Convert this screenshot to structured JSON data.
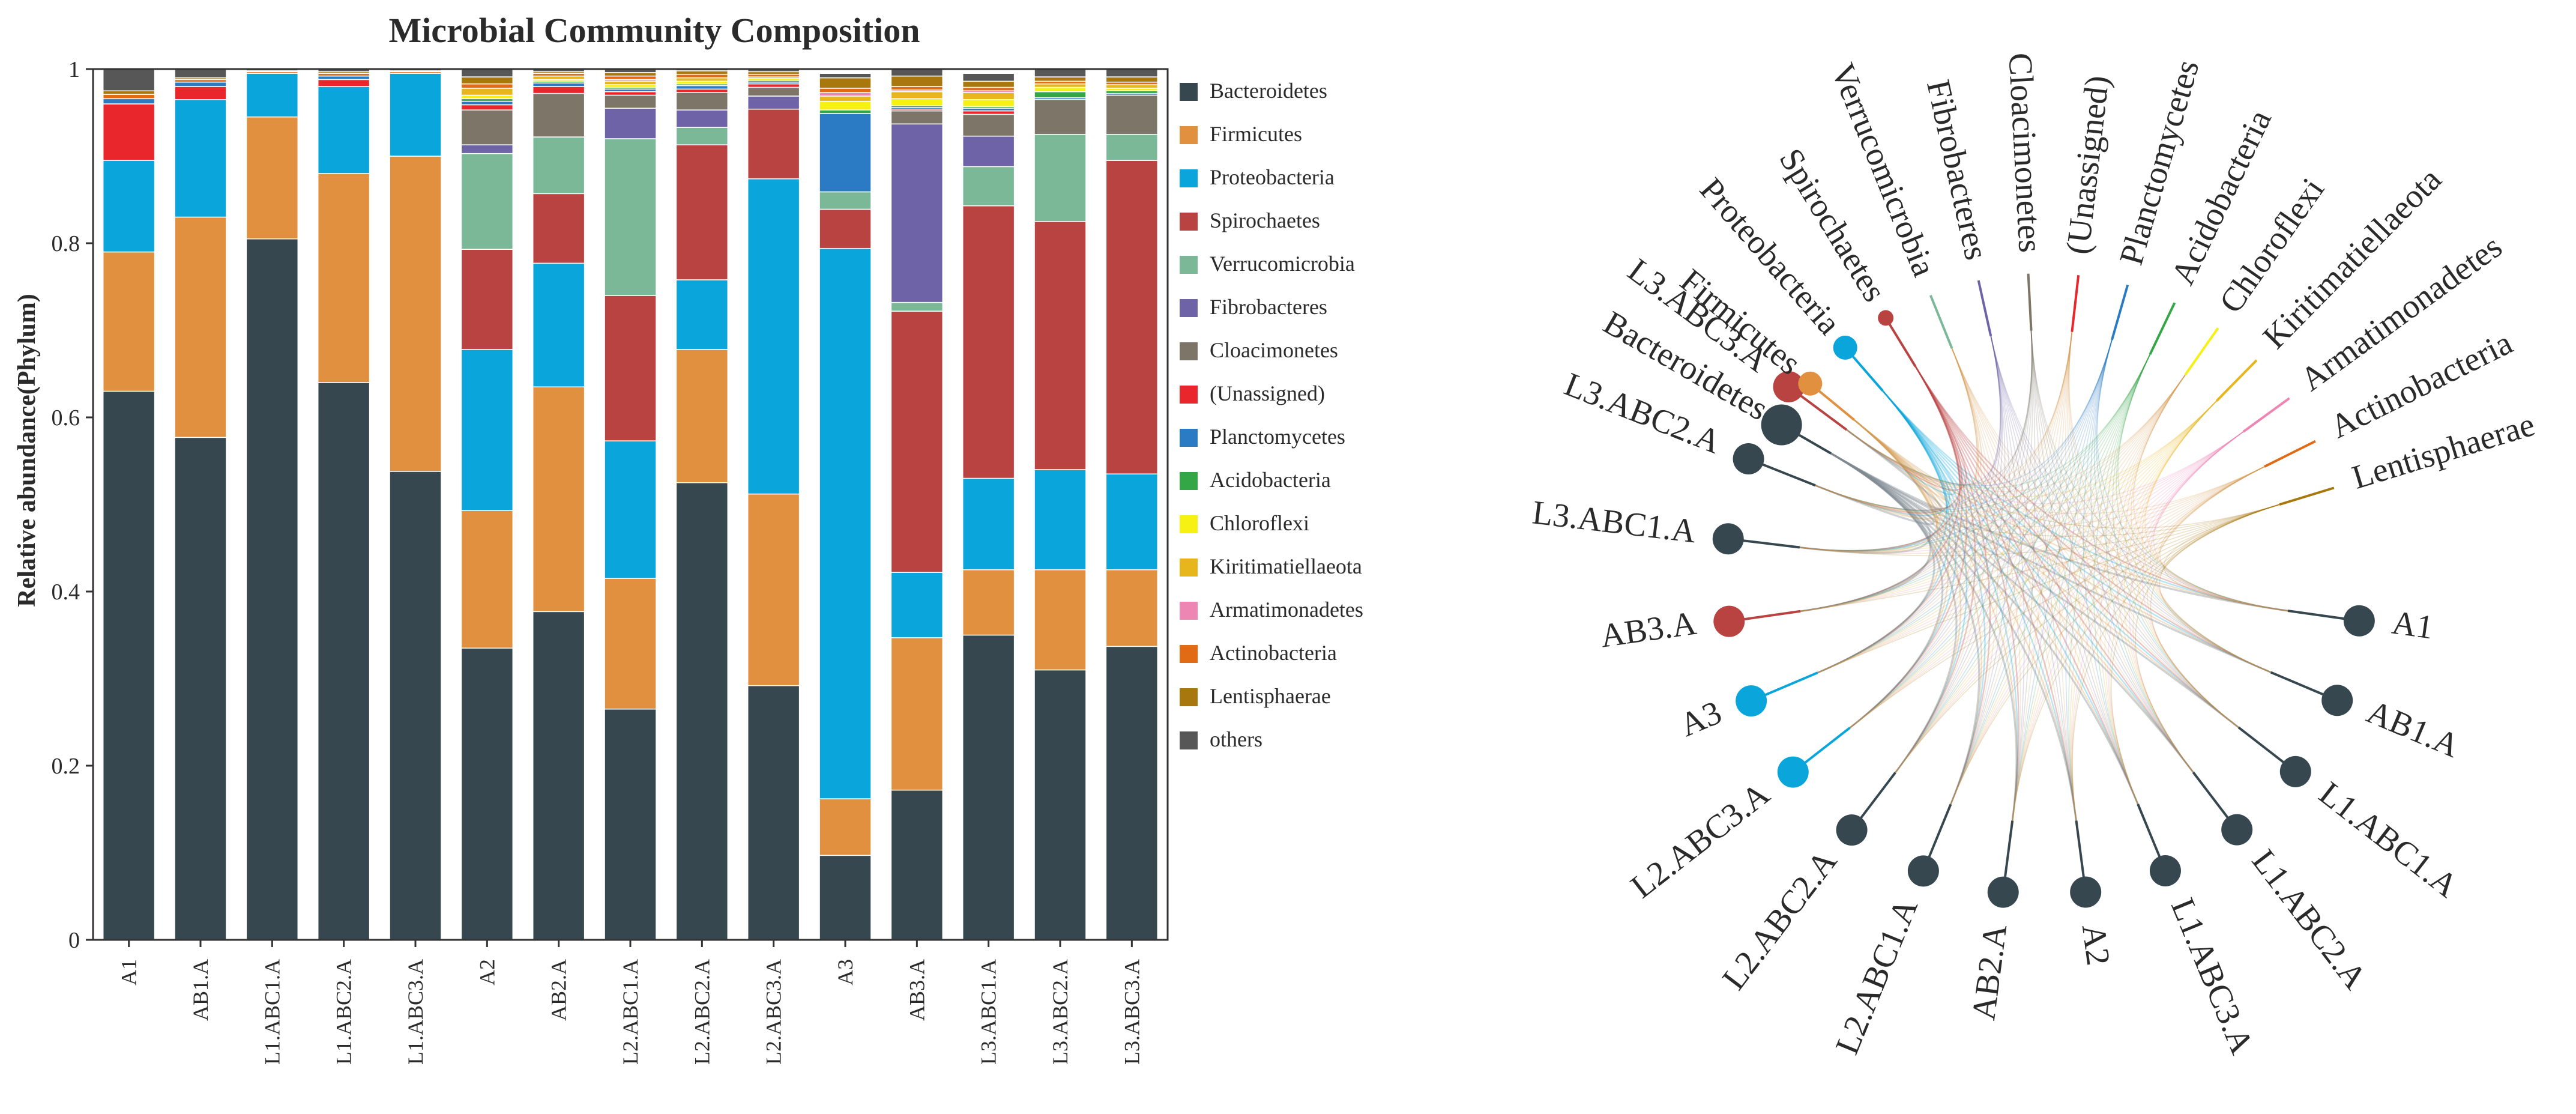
{
  "figure": {
    "panels": [
      "stacked-bar",
      "chord-diagram"
    ]
  },
  "colors": {
    "Bacteroidetes": "#37474f",
    "Firmicutes": "#e0903e",
    "Proteobacteria": "#0aa5db",
    "Spirochaetes": "#b84341",
    "Verrucomicrobia": "#7ab898",
    "Fibrobacteres": "#6e63a6",
    "Cloacimonetes": "#7d7567",
    "(Unassigned)": "#e8262b",
    "Planctomycetes": "#2b7bc4",
    "Acidobacteria": "#33a645",
    "Chloroflexi": "#f6f013",
    "Kiritimatiellaeota": "#e6b61c",
    "Armatimonadetes": "#ee86b4",
    "Actinobacteria": "#e06b14",
    "Lentisphaerae": "#a8780f",
    "others": "#575757"
  },
  "chart_data": [
    {
      "type": "bar",
      "stacked": true,
      "title": "Microbial Community Composition",
      "xlabel": "",
      "ylabel": "Relative abundance(Phylum)",
      "ylim": [
        0,
        1
      ],
      "yticks": [
        "0",
        "0.2",
        "0.4",
        "0.6",
        "0.8",
        "1"
      ],
      "legend_position": "right",
      "categories": [
        "A1",
        "AB1.A",
        "L1.ABC1.A",
        "L1.ABC2.A",
        "L1.ABC3.A",
        "A2",
        "AB2.A",
        "L2.ABC1.A",
        "L2.ABC2.A",
        "L2.ABC3.A",
        "A3",
        "AB3.A",
        "L3.ABC1.A",
        "L3.ABC2.A",
        "L3.ABC3.A"
      ],
      "series": [
        {
          "name": "Bacteroidetes",
          "values": [
            0.63,
            0.577,
            0.805,
            0.64,
            0.538,
            0.335,
            0.377,
            0.265,
            0.525,
            0.292,
            0.097,
            0.172,
            0.35,
            0.31,
            0.337
          ]
        },
        {
          "name": "Firmicutes",
          "values": [
            0.16,
            0.253,
            0.14,
            0.24,
            0.362,
            0.158,
            0.258,
            0.15,
            0.153,
            0.22,
            0.065,
            0.175,
            0.075,
            0.115,
            0.088
          ]
        },
        {
          "name": "Proteobacteria",
          "values": [
            0.105,
            0.135,
            0.05,
            0.1,
            0.095,
            0.185,
            0.142,
            0.158,
            0.08,
            0.362,
            0.632,
            0.075,
            0.105,
            0.115,
            0.11
          ]
        },
        {
          "name": "Spirochaetes",
          "values": [
            0,
            0,
            0,
            0,
            0,
            0.115,
            0.08,
            0.167,
            0.155,
            0.08,
            0.045,
            0.3,
            0.313,
            0.285,
            0.36
          ]
        },
        {
          "name": "Verrucomicrobia",
          "values": [
            0,
            0,
            0,
            0,
            0,
            0.11,
            0.065,
            0.18,
            0.02,
            0,
            0.02,
            0.01,
            0.045,
            0.1,
            0.03
          ]
        },
        {
          "name": "Fibrobacteres",
          "values": [
            0,
            0,
            0,
            0,
            0,
            0.01,
            0,
            0.035,
            0.02,
            0.015,
            0,
            0.205,
            0.035,
            0,
            0
          ]
        },
        {
          "name": "Cloacimonetes",
          "values": [
            0,
            0,
            0,
            0,
            0,
            0.04,
            0.05,
            0.015,
            0.02,
            0.01,
            0,
            0.015,
            0.025,
            0.04,
            0.045
          ]
        },
        {
          "name": "(Unassigned)",
          "values": [
            0.065,
            0.015,
            0,
            0.008,
            0,
            0.006,
            0.008,
            0.004,
            0.004,
            0.004,
            0,
            0.002,
            0.004,
            0,
            0
          ]
        },
        {
          "name": "Planctomycetes",
          "values": [
            0.006,
            0.005,
            0,
            0.004,
            0,
            0.004,
            0.004,
            0.003,
            0.004,
            0.002,
            0.09,
            0.002,
            0.003,
            0.002,
            0.002
          ]
        },
        {
          "name": "Acidobacteria",
          "values": [
            0,
            0,
            0,
            0,
            0,
            0.003,
            0.002,
            0.002,
            0.002,
            0.002,
            0.004,
            0.002,
            0.002,
            0.007,
            0.003
          ]
        },
        {
          "name": "Chloroflexi",
          "values": [
            0,
            0,
            0,
            0,
            0,
            0.004,
            0.002,
            0.003,
            0.003,
            0.002,
            0.01,
            0.008,
            0.008,
            0.005,
            0.003
          ]
        },
        {
          "name": "Kiritimatiellaeota",
          "values": [
            0,
            0,
            0,
            0,
            0,
            0.008,
            0.004,
            0.004,
            0.004,
            0.002,
            0.006,
            0.008,
            0.008,
            0.004,
            0.004
          ]
        },
        {
          "name": "Armatimonadetes",
          "values": [
            0,
            0,
            0,
            0,
            0,
            0,
            0,
            0.002,
            0,
            0,
            0.004,
            0.002,
            0.002,
            0,
            0
          ]
        },
        {
          "name": "Actinobacteria",
          "values": [
            0.005,
            0.003,
            0.002,
            0.003,
            0.002,
            0.005,
            0.003,
            0.004,
            0.004,
            0.003,
            0.005,
            0.004,
            0.004,
            0.003,
            0.003
          ]
        },
        {
          "name": "Lentisphaerae",
          "values": [
            0.004,
            0.002,
            0.001,
            0.002,
            0.001,
            0.008,
            0.002,
            0.004,
            0.004,
            0.003,
            0.012,
            0.012,
            0.007,
            0.005,
            0.006
          ]
        },
        {
          "name": "others",
          "values": [
            0.025,
            0.01,
            0.002,
            0.003,
            0.002,
            0.009,
            0.003,
            0.004,
            0.003,
            0.003,
            0.005,
            0.008,
            0.009,
            0.009,
            0.009
          ]
        }
      ]
    },
    {
      "type": "chord",
      "title": "",
      "nodes_samples": [
        "A1",
        "AB1.A",
        "L1.ABC1.A",
        "L1.ABC2.A",
        "L1.ABC3.A",
        "A2",
        "AB2.A",
        "L2.ABC1.A",
        "L2.ABC2.A",
        "L2.ABC3.A",
        "A3",
        "AB3.A",
        "L3.ABC1.A",
        "L3.ABC2.A",
        "L3.ABC3.A"
      ],
      "nodes_phyla": [
        "Bacteroidetes",
        "Firmicutes",
        "Proteobacteria",
        "Spirochaetes",
        "Verrucomicrobia",
        "Fibrobacteres",
        "Cloacimonetes",
        "(Unassigned)",
        "Planctomycetes",
        "Acidobacteria",
        "Chloroflexi",
        "Kiritimatiellaeota",
        "Armatimonadetes",
        "Actinobacteria",
        "Lentisphaerae"
      ],
      "sample_dominant_phylum": [
        "Bacteroidetes",
        "Bacteroidetes",
        "Bacteroidetes",
        "Bacteroidetes",
        "Bacteroidetes",
        "Bacteroidetes",
        "Bacteroidetes",
        "Bacteroidetes",
        "Bacteroidetes",
        "Proteobacteria",
        "Proteobacteria",
        "Spirochaetes",
        "Bacteroidetes",
        "Bacteroidetes",
        "Spirochaetes"
      ],
      "phylum_marker_size": [
        4,
        2,
        2,
        1,
        0,
        0,
        0,
        0,
        0,
        0,
        0,
        0,
        0,
        0,
        0
      ]
    }
  ]
}
